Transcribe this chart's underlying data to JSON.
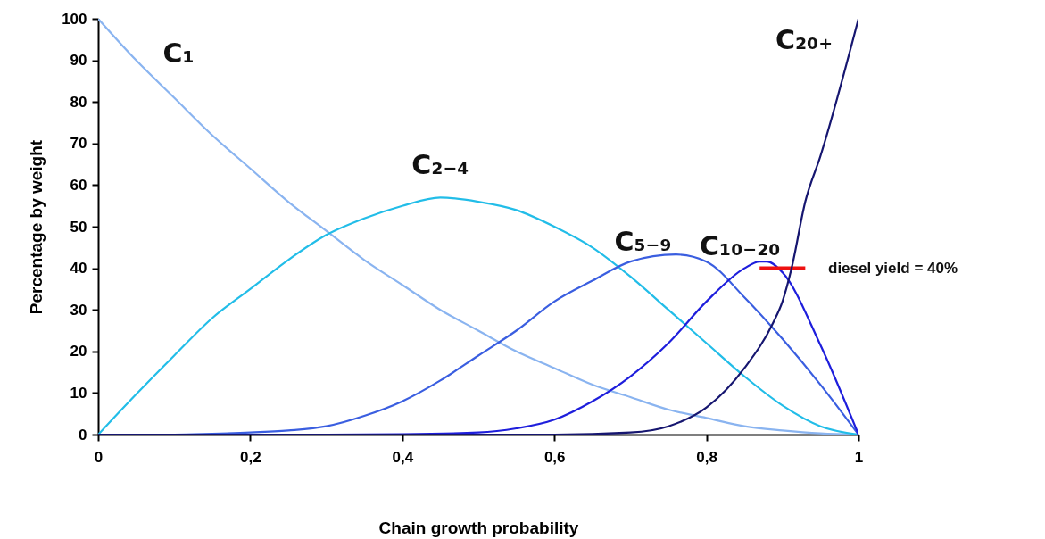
{
  "chart_data": {
    "type": "line",
    "xlabel": "Chain growth probability",
    "ylabel": "Percentage by weight",
    "xlim": [
      0,
      1
    ],
    "ylim": [
      0,
      100
    ],
    "xticks": [
      0,
      {
        "value": 0.2,
        "label": "0,2"
      },
      {
        "value": 0.4,
        "label": "0,4"
      },
      {
        "value": 0.6,
        "label": "0,6"
      },
      {
        "value": 0.8,
        "label": "0,8"
      },
      1
    ],
    "yticks": [
      0,
      10,
      20,
      30,
      40,
      50,
      60,
      70,
      80,
      90,
      100
    ],
    "series": [
      {
        "name": "C₁",
        "color": "#8ab4f0",
        "x": [
          0,
          0.05,
          0.1,
          0.15,
          0.2,
          0.25,
          0.3,
          0.35,
          0.4,
          0.45,
          0.5,
          0.55,
          0.6,
          0.65,
          0.7,
          0.75,
          0.8,
          0.85,
          0.9,
          0.95,
          1
        ],
        "values": [
          100,
          90,
          81,
          72,
          64,
          56,
          49,
          42,
          36,
          30,
          25,
          20,
          16,
          12,
          9,
          6,
          4,
          2,
          1,
          0.3,
          0
        ]
      },
      {
        "name": "C₂₋₄",
        "color": "#22bde8",
        "x": [
          0,
          0.05,
          0.1,
          0.15,
          0.2,
          0.25,
          0.3,
          0.35,
          0.4,
          0.45,
          0.5,
          0.55,
          0.6,
          0.65,
          0.7,
          0.75,
          0.8,
          0.85,
          0.9,
          0.95,
          1
        ],
        "values": [
          0,
          9.7,
          19,
          28,
          35,
          42,
          48,
          52,
          55,
          57,
          56,
          54,
          50,
          45,
          38,
          30,
          22,
          14,
          7,
          2,
          0
        ]
      },
      {
        "name": "C₅₋₉",
        "color": "#3a5ee0",
        "x": [
          0,
          0.1,
          0.15,
          0.2,
          0.25,
          0.3,
          0.35,
          0.4,
          0.45,
          0.5,
          0.55,
          0.6,
          0.65,
          0.7,
          0.76,
          0.8,
          0.85,
          0.9,
          0.95,
          1
        ],
        "values": [
          0,
          0,
          0.2,
          0.5,
          1,
          2,
          4.5,
          8,
          13,
          19,
          25,
          32,
          37,
          41.6,
          43.3,
          41.6,
          33,
          23,
          12,
          0
        ]
      },
      {
        "name": "C₁₀₋₂₀",
        "color": "#1e1edc",
        "x": [
          0,
          0.3,
          0.4,
          0.5,
          0.55,
          0.6,
          0.65,
          0.7,
          0.75,
          0.8,
          0.85,
          0.87,
          0.88,
          0.9,
          0.95,
          1
        ],
        "values": [
          0,
          0,
          0.1,
          0.5,
          1.5,
          3.6,
          8,
          14,
          22,
          32,
          40,
          41.6,
          41.6,
          39,
          21.5,
          0
        ]
      },
      {
        "color": "#ee1111",
        "x": [
          0.87,
          0.93
        ],
        "values": [
          40,
          40
        ]
      },
      {
        "name": "C₂₀₊",
        "color": "#161670",
        "x": [
          0,
          0.6,
          0.7,
          0.75,
          0.8,
          0.85,
          0.888,
          0.9,
          0.912,
          0.93,
          0.95,
          1
        ],
        "values": [
          0,
          0,
          0.5,
          2,
          6.5,
          16,
          27,
          32,
          40,
          56,
          67,
          100
        ]
      }
    ],
    "annotations": [
      "diesel yield = 40%"
    ]
  }
}
